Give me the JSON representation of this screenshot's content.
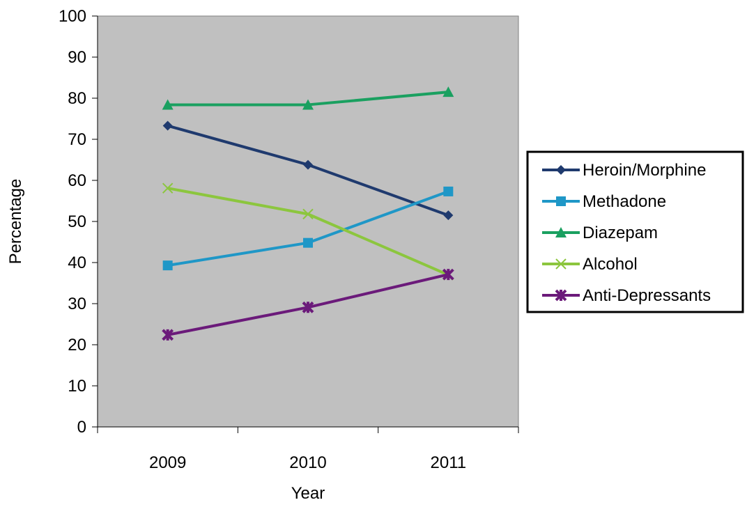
{
  "chart_data": {
    "type": "line",
    "title": "",
    "xlabel": "Year",
    "ylabel": "Percentage",
    "categories": [
      "2009",
      "2010",
      "2011"
    ],
    "ylim": [
      0,
      100
    ],
    "yticks": [
      0,
      10,
      20,
      30,
      40,
      50,
      60,
      70,
      80,
      90,
      100
    ],
    "grid": false,
    "plot_background": "#c0c0c0",
    "legend_position": "right",
    "series": [
      {
        "name": "Heroin/Morphine",
        "values": [
          73.3,
          63.8,
          51.5
        ],
        "color": "#1f3a6e",
        "marker": "diamond"
      },
      {
        "name": "Methadone",
        "values": [
          39.3,
          44.8,
          57.3
        ],
        "color": "#1f97c7",
        "marker": "square"
      },
      {
        "name": "Diazepam",
        "values": [
          78.4,
          78.4,
          81.5
        ],
        "color": "#1aa060",
        "marker": "triangle"
      },
      {
        "name": "Alcohol",
        "values": [
          58.1,
          51.8,
          37.0
        ],
        "color": "#8cc63e",
        "marker": "x"
      },
      {
        "name": "Anti-Depressants",
        "values": [
          22.4,
          29.1,
          37.1
        ],
        "color": "#6b1a7a",
        "marker": "star"
      }
    ]
  }
}
